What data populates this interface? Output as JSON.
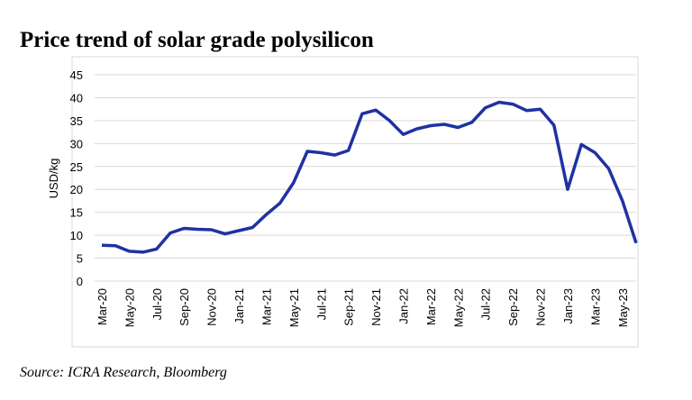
{
  "chart_data": {
    "type": "line",
    "title": "Price trend of solar grade polysilicon",
    "y_label": "USD/kg",
    "source": "Source: ICRA Research, Bloomberg",
    "categories": [
      "Mar-20",
      null,
      "May-20",
      null,
      "Jul-20",
      null,
      "Sep-20",
      null,
      "Nov-20",
      null,
      "Jan-21",
      null,
      "Mar-21",
      null,
      "May-21",
      null,
      "Jul-21",
      null,
      "Sep-21",
      null,
      "Nov-21",
      null,
      "Jan-22",
      null,
      "Mar-22",
      null,
      "May-22",
      null,
      "Jul-22",
      null,
      "Sep-22",
      null,
      "Nov-22",
      null,
      "Jan-23",
      null,
      "Mar-23",
      null,
      "May-23",
      null
    ],
    "series": [
      {
        "color": "#1f32a3",
        "values": [
          7.8,
          7.7,
          6.5,
          6.3,
          7.0,
          10.5,
          11.5,
          11.3,
          11.2,
          10.3,
          11.0,
          11.7,
          14.5,
          17.0,
          21.5,
          28.3,
          28.0,
          27.5,
          28.5,
          36.5,
          37.3,
          35.0,
          32.0,
          33.2,
          33.9,
          34.2,
          33.5,
          34.6,
          37.8,
          39.0,
          38.6,
          37.2,
          37.5,
          34.0,
          20.0,
          29.8,
          28.0,
          24.5,
          17.5,
          8.3
        ]
      }
    ],
    "ylim": [
      0,
      45
    ],
    "yticks": [
      0,
      5,
      10,
      15,
      20,
      25,
      30,
      35,
      40,
      45
    ],
    "grid": true
  }
}
